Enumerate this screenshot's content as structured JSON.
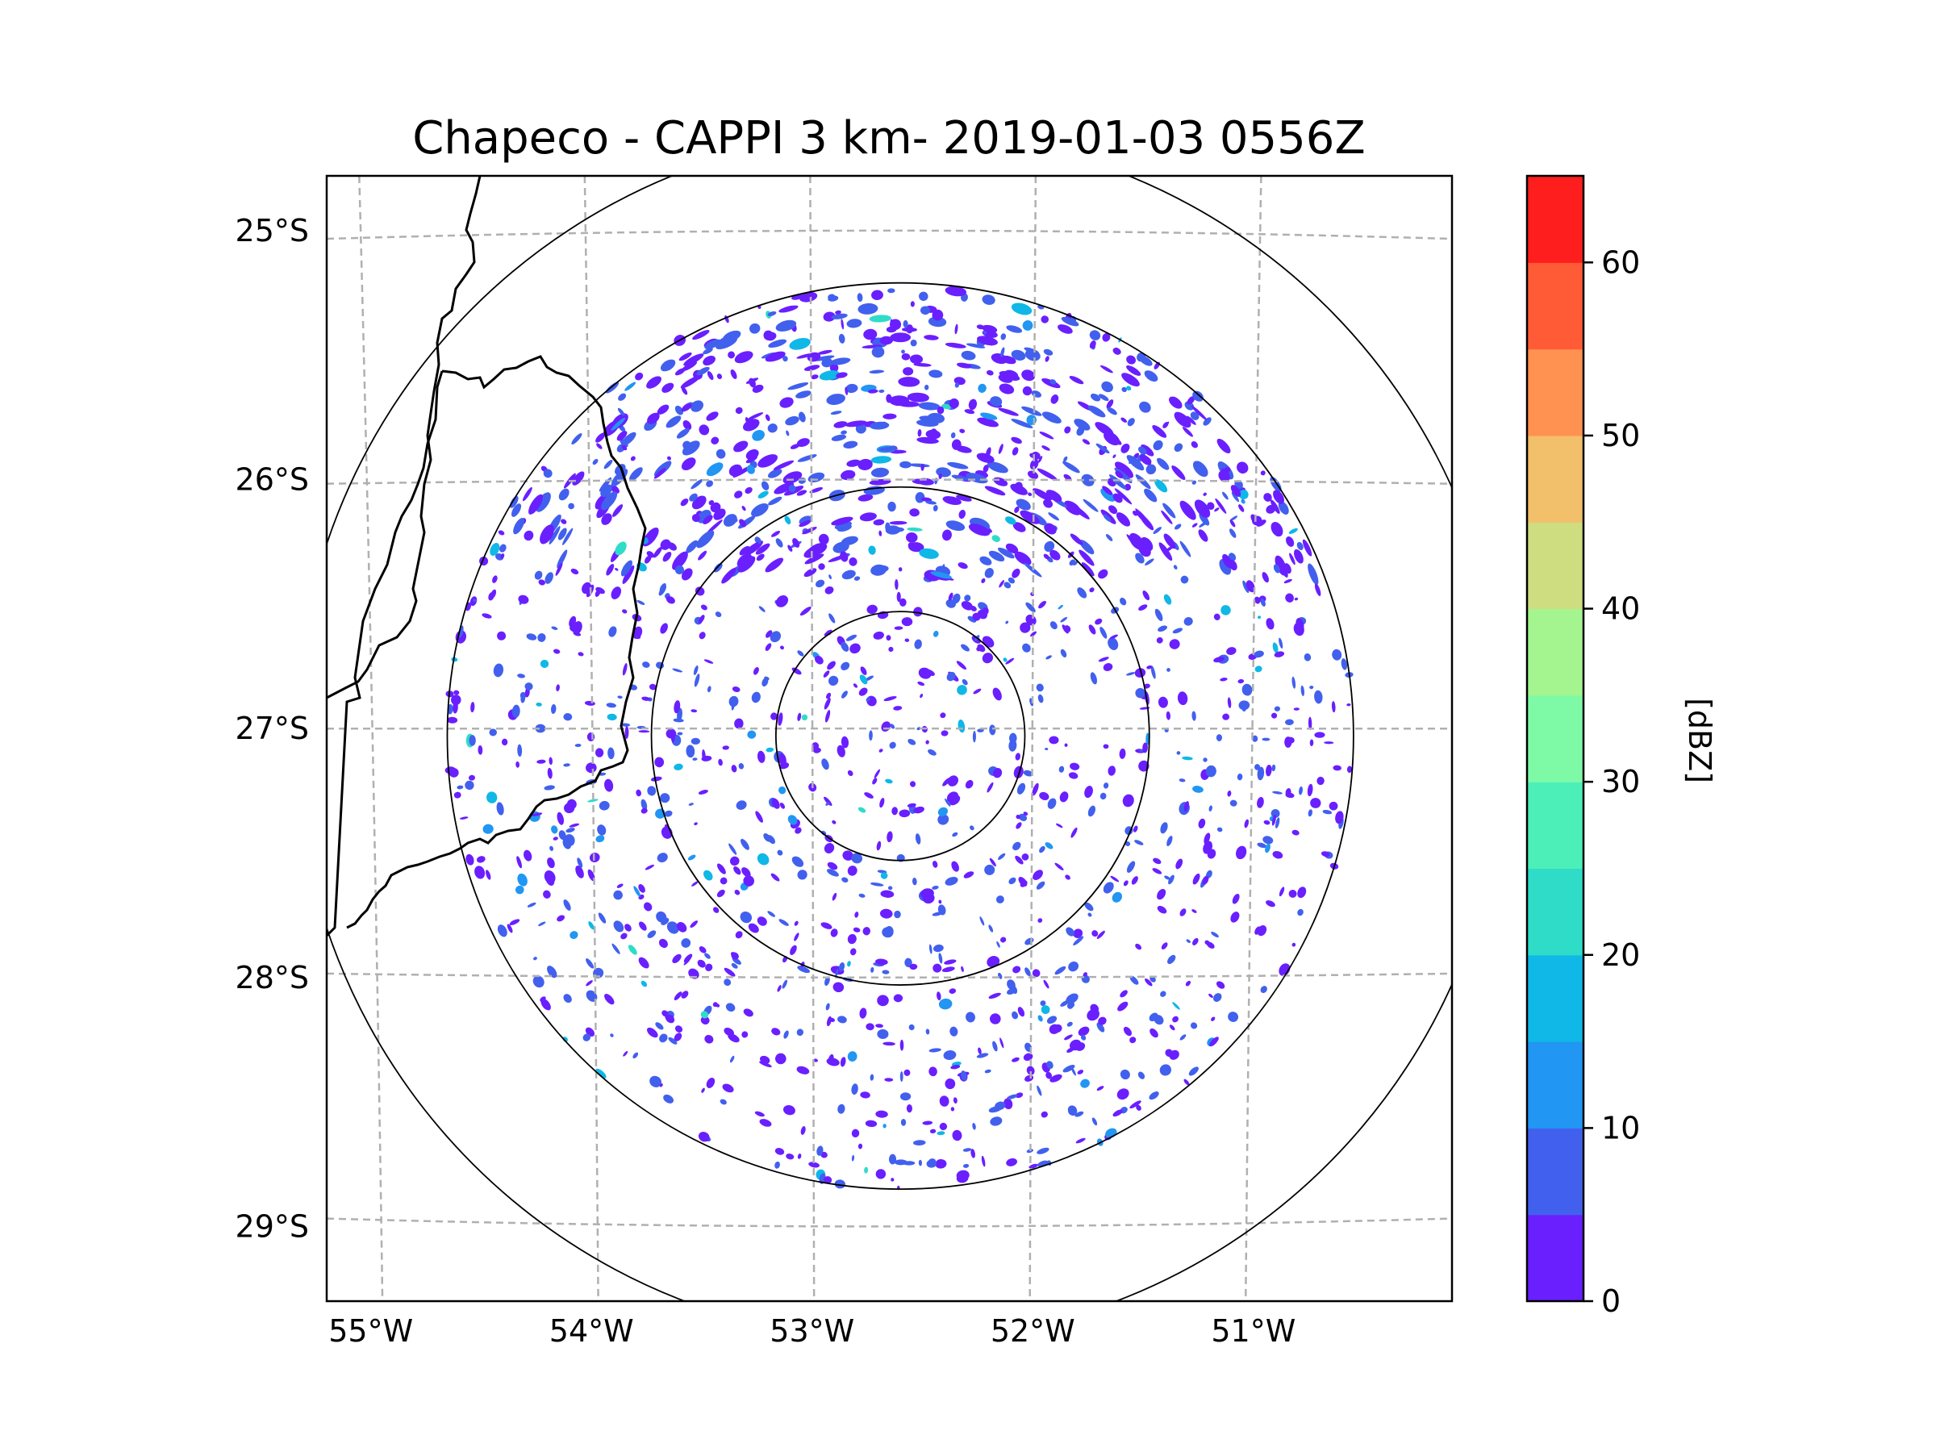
{
  "chart_data": {
    "type": "radar-ppi-map",
    "title": "Chapeco - CAPPI 3 km- 2019-01-03 0556Z",
    "radar_site": "Chapeco",
    "product": "CAPPI 3 km",
    "timestamp": "2019-01-03 0556Z",
    "radar_center": {
      "lon": -52.6,
      "lat": -27.03
    },
    "lon_range": [
      -55.2,
      -50.1
    ],
    "lat_range": [
      -29.3,
      -24.78
    ],
    "lon_ticks": [
      -55,
      -54,
      -53,
      -52,
      -51
    ],
    "lon_tick_labels": [
      "55°W",
      "54°W",
      "53°W",
      "52°W",
      "51°W"
    ],
    "lat_ticks": [
      -25,
      -26,
      -27,
      -28,
      -29
    ],
    "lat_tick_labels": [
      "25°S",
      "26°S",
      "27°S",
      "28°S",
      "29°S"
    ],
    "gridlines": true,
    "range_rings_deg": [
      0.5,
      1.0,
      1.82,
      2.43
    ],
    "coverage_radius_deg": 1.82,
    "colorbar": {
      "label": "[dBZ]",
      "min": 0,
      "max": 65,
      "ticks": [
        0,
        10,
        20,
        30,
        40,
        50,
        60
      ],
      "tick_labels": [
        "0",
        "10",
        "20",
        "30",
        "40",
        "50",
        "60"
      ],
      "bin_width": 5,
      "colors": [
        "#6a1fff",
        "#4260ee",
        "#2196f3",
        "#0fb8e6",
        "#2fdcc8",
        "#4cefb8",
        "#7efaa7",
        "#a4f590",
        "#cddd80",
        "#f2bf6a",
        "#ff9250",
        "#ff5b36",
        "#ff1e1e"
      ]
    },
    "echo_summary": {
      "dominant_range_dbz": [
        0,
        10
      ],
      "max_observed_dbz": 25,
      "pattern": "widespread weak echoes, denser band to the north"
    }
  }
}
